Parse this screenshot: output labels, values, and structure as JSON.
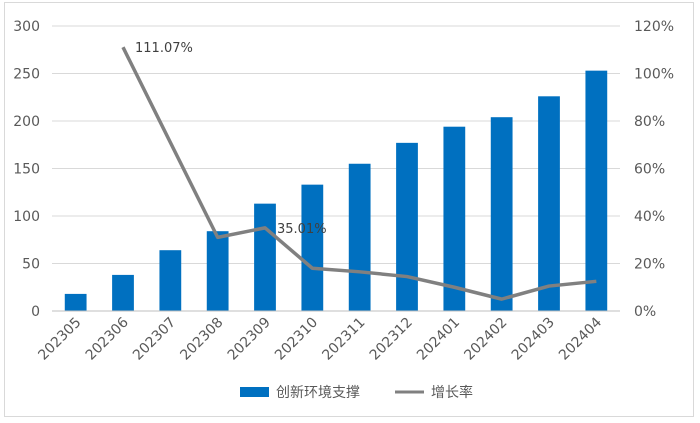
{
  "chart_data": {
    "type": "bar",
    "categories": [
      "202305",
      "202306",
      "202307",
      "202308",
      "202309",
      "202310",
      "202311",
      "202312",
      "202401",
      "202402",
      "202403",
      "202404"
    ],
    "series": [
      {
        "name": "创新环境支撑",
        "type": "bar",
        "axis": "left",
        "color": "#0070c0",
        "values": [
          18,
          38,
          64,
          84,
          113,
          133,
          155,
          177,
          194,
          204,
          226,
          253
        ]
      },
      {
        "name": "增长率",
        "type": "line",
        "axis": "right",
        "color": "#808080",
        "unit": "%",
        "values": [
          null,
          111.07,
          71.0,
          31.0,
          35.01,
          18.0,
          16.5,
          14.5,
          10.0,
          5.0,
          10.5,
          12.5
        ]
      }
    ],
    "data_labels": [
      {
        "series": "增长率",
        "category": "202306",
        "text": "111.07%"
      },
      {
        "series": "增长率",
        "category": "202309",
        "text": "35.01%"
      }
    ],
    "ylim": [
      0,
      300
    ],
    "y_ticks": [
      "0",
      "50",
      "100",
      "150",
      "200",
      "250",
      "300"
    ],
    "y2lim": [
      0,
      120
    ],
    "y2_ticks": [
      "0%",
      "20%",
      "40%",
      "60%",
      "80%",
      "100%",
      "120%"
    ],
    "grid": true,
    "legend_position": "bottom",
    "title": "",
    "xlabel": "",
    "ylabel": ""
  }
}
